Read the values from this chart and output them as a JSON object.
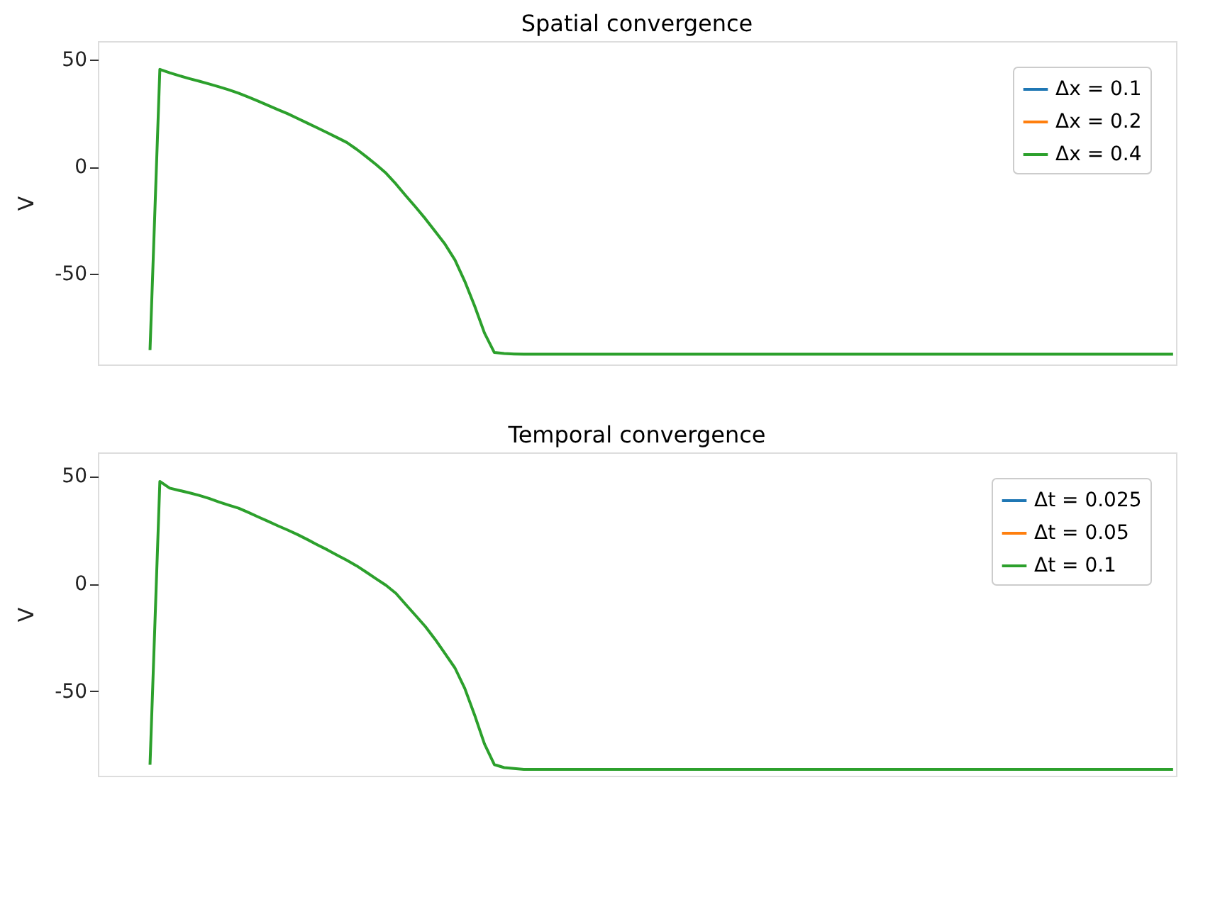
{
  "chart_data": [
    {
      "type": "line",
      "title": "Spatial convergence",
      "ylabel": "V",
      "tick_labels": "y",
      "grid": false,
      "legend": "top right",
      "line_style": "solid",
      "marker": "none",
      "ylim": [
        -92.3,
        58.7
      ],
      "yticks": [
        -50,
        0,
        50
      ],
      "categories": [
        null,
        null,
        null,
        null,
        null,
        null,
        null,
        null,
        null,
        null,
        null,
        null,
        null,
        null,
        null,
        null,
        null,
        null,
        null,
        null,
        null,
        null,
        null,
        null,
        null,
        null,
        null,
        null,
        null,
        null,
        null,
        null,
        null,
        null,
        null,
        null,
        null,
        null,
        null,
        null,
        null,
        null,
        null,
        null,
        null,
        null,
        null,
        null,
        null,
        null,
        null,
        null,
        null,
        null,
        null,
        null,
        null,
        null,
        null,
        null,
        null,
        null,
        null,
        null,
        null,
        null,
        null,
        null,
        null,
        null,
        null,
        null,
        null,
        null,
        null,
        null,
        null,
        null,
        null,
        null,
        null,
        null,
        null,
        null,
        null,
        null,
        null,
        null,
        null,
        null,
        null,
        null,
        null,
        null,
        null,
        null,
        null,
        null,
        null,
        null,
        null,
        null,
        null,
        null,
        null,
        null,
        null,
        null,
        null,
        null
      ],
      "series": [
        {
          "name": "Δx = 0.1",
          "color": "#1f77b4",
          "values": [
            null,
            null,
            null,
            null,
            null,
            null,
            null,
            null,
            null,
            null,
            null,
            null,
            null,
            null,
            null,
            null,
            null,
            null,
            null,
            null,
            null,
            null,
            null,
            null,
            null,
            null,
            null,
            null,
            null,
            null,
            null,
            null,
            null,
            null,
            null,
            null,
            null,
            null,
            null,
            null,
            null,
            null,
            null,
            null,
            null,
            null,
            null,
            null,
            null,
            null,
            null,
            null,
            null,
            null,
            null,
            null,
            null,
            null,
            null,
            null,
            null,
            null,
            null,
            null,
            null,
            null,
            null,
            null,
            null,
            null,
            null,
            null,
            null,
            null,
            null,
            null,
            null,
            null,
            null,
            null,
            null,
            null,
            null,
            null,
            null,
            null,
            null,
            null,
            null,
            null,
            null,
            null,
            null,
            null,
            null,
            null,
            null,
            null,
            null,
            null,
            null,
            null,
            null,
            null,
            null,
            null,
            null,
            null,
            null,
            null
          ]
        },
        {
          "name": "Δx = 0.2",
          "color": "#ff7f0e",
          "values": [
            null,
            null,
            null,
            null,
            null,
            null,
            null,
            null,
            null,
            null,
            null,
            null,
            null,
            null,
            null,
            null,
            null,
            null,
            null,
            null,
            null,
            null,
            null,
            null,
            null,
            null,
            null,
            null,
            null,
            null,
            null,
            null,
            null,
            null,
            null,
            null,
            null,
            null,
            null,
            null,
            null,
            null,
            null,
            null,
            null,
            null,
            null,
            null,
            null,
            null,
            null,
            null,
            null,
            null,
            null,
            null,
            null,
            null,
            null,
            null,
            null,
            null,
            null,
            null,
            null,
            null,
            null,
            null,
            null,
            null,
            null,
            null,
            null,
            null,
            null,
            null,
            null,
            null,
            null,
            null,
            null,
            null,
            null,
            null,
            null,
            null,
            null,
            null,
            null,
            null,
            null,
            null,
            null,
            null,
            null,
            null,
            null,
            null,
            null,
            null,
            null,
            null,
            null,
            null,
            null,
            null,
            null,
            null,
            null,
            null
          ]
        },
        {
          "name": "Δx = 0.4",
          "color": "#2ca02c",
          "values": [
            null,
            null,
            null,
            null,
            null,
            -85.6,
            45.5,
            43.9,
            42.5,
            41.2,
            40.0,
            38.7,
            37.4,
            36.0,
            34.4,
            32.6,
            30.7,
            28.7,
            26.7,
            24.8,
            22.6,
            20.4,
            18.2,
            16.0,
            13.7,
            11.4,
            8.2,
            4.7,
            1.0,
            -3.0,
            -8.0,
            -13.5,
            -18.8,
            -24.3,
            -30.2,
            -36.2,
            -43.5,
            -53.5,
            -65.0,
            -77.6,
            -86.7,
            -87.2,
            -87.4,
            -87.5,
            -87.5,
            -87.5,
            -87.5,
            -87.5,
            -87.5,
            -87.5,
            -87.5,
            -87.5,
            -87.5,
            -87.5,
            -87.5,
            -87.5,
            -87.5,
            -87.5,
            -87.5,
            -87.5,
            -87.5,
            -87.5,
            -87.5,
            -87.5,
            -87.5,
            -87.5,
            -87.5,
            -87.5,
            -87.5,
            -87.5,
            -87.5,
            -87.5,
            -87.5,
            -87.5,
            -87.5,
            -87.5,
            -87.5,
            -87.5,
            -87.5,
            -87.5,
            -87.5,
            -87.5,
            -87.5,
            -87.5,
            -87.5,
            -87.5,
            -87.5,
            -87.5,
            -87.5,
            -87.5,
            -87.5,
            -87.5,
            -87.5,
            -87.5,
            -87.5,
            -87.5,
            -87.5,
            -87.5,
            -87.5,
            -87.5,
            -87.5,
            -87.5,
            -87.5,
            -87.5,
            -87.5,
            -87.5,
            -87.5,
            -87.5,
            -87.5,
            -87.5
          ]
        }
      ]
    },
    {
      "type": "line",
      "title": "Temporal convergence",
      "ylabel": "V",
      "tick_labels": "y",
      "grid": false,
      "legend": "top right",
      "line_style": "solid",
      "marker": "none",
      "ylim": [
        -89.3,
        61
      ],
      "yticks": [
        -50,
        0,
        50
      ],
      "categories": [
        null,
        null,
        null,
        null,
        null,
        null,
        null,
        null,
        null,
        null,
        null,
        null,
        null,
        null,
        null,
        null,
        null,
        null,
        null,
        null,
        null,
        null,
        null,
        null,
        null,
        null,
        null,
        null,
        null,
        null,
        null,
        null,
        null,
        null,
        null,
        null,
        null,
        null,
        null,
        null,
        null,
        null,
        null,
        null,
        null,
        null,
        null,
        null,
        null,
        null,
        null,
        null,
        null,
        null,
        null,
        null,
        null,
        null,
        null,
        null,
        null,
        null,
        null,
        null,
        null,
        null,
        null,
        null,
        null,
        null,
        null,
        null,
        null,
        null,
        null,
        null,
        null,
        null,
        null,
        null,
        null,
        null,
        null,
        null,
        null,
        null,
        null,
        null,
        null,
        null,
        null,
        null,
        null,
        null,
        null,
        null,
        null,
        null,
        null,
        null,
        null,
        null,
        null,
        null,
        null,
        null,
        null,
        null,
        null,
        null
      ],
      "series": [
        {
          "name": "Δt = 0.025",
          "color": "#1f77b4",
          "values": [
            null,
            null,
            null,
            null,
            null,
            null,
            null,
            null,
            null,
            null,
            null,
            null,
            null,
            null,
            null,
            null,
            null,
            null,
            null,
            null,
            null,
            null,
            null,
            null,
            null,
            null,
            null,
            null,
            null,
            null,
            null,
            null,
            null,
            null,
            null,
            null,
            null,
            null,
            null,
            null,
            null,
            null,
            null,
            null,
            null,
            null,
            null,
            null,
            null,
            null,
            null,
            null,
            null,
            null,
            null,
            null,
            null,
            null,
            null,
            null,
            null,
            null,
            null,
            null,
            null,
            null,
            null,
            null,
            null,
            null,
            null,
            null,
            null,
            null,
            null,
            null,
            null,
            null,
            null,
            null,
            null,
            null,
            null,
            null,
            null,
            null,
            null,
            null,
            null,
            null,
            null,
            null,
            null,
            null,
            null,
            null,
            null,
            null,
            null,
            null,
            null,
            null,
            null,
            null,
            null,
            null,
            null,
            null,
            null,
            null
          ]
        },
        {
          "name": "Δt = 0.05",
          "color": "#ff7f0e",
          "values": [
            null,
            null,
            null,
            null,
            null,
            null,
            null,
            null,
            null,
            null,
            null,
            null,
            null,
            null,
            null,
            null,
            null,
            null,
            null,
            null,
            null,
            null,
            null,
            null,
            null,
            null,
            null,
            null,
            null,
            null,
            null,
            null,
            null,
            null,
            null,
            null,
            null,
            null,
            null,
            null,
            null,
            null,
            null,
            null,
            null,
            null,
            null,
            null,
            null,
            null,
            null,
            null,
            null,
            null,
            null,
            null,
            null,
            null,
            null,
            null,
            null,
            null,
            null,
            null,
            null,
            null,
            null,
            null,
            null,
            null,
            null,
            null,
            null,
            null,
            null,
            null,
            null,
            null,
            null,
            null,
            null,
            null,
            null,
            null,
            null,
            null,
            null,
            null,
            null,
            null,
            null,
            null,
            null,
            null,
            null,
            null,
            null,
            null,
            null,
            null,
            null,
            null,
            null,
            null,
            null,
            null,
            null,
            null,
            null,
            null
          ]
        },
        {
          "name": "Δt = 0.1",
          "color": "#2ca02c",
          "values": [
            null,
            null,
            null,
            null,
            null,
            -84.2,
            47.5,
            44.4,
            43.3,
            42.2,
            41.0,
            39.6,
            38.0,
            36.5,
            35.1,
            33.1,
            31.0,
            29.0,
            26.9,
            24.9,
            22.8,
            20.5,
            18.1,
            15.8,
            13.3,
            10.9,
            8.3,
            5.3,
            2.2,
            -0.8,
            -4.5,
            -9.7,
            -14.8,
            -20.0,
            -26.0,
            -32.6,
            -39.2,
            -48.7,
            -61.1,
            -74.5,
            -84.1,
            -85.5,
            -85.9,
            -86.3,
            -86.3,
            -86.3,
            -86.3,
            -86.3,
            -86.3,
            -86.3,
            -86.3,
            -86.3,
            -86.3,
            -86.3,
            -86.3,
            -86.3,
            -86.3,
            -86.3,
            -86.3,
            -86.3,
            -86.3,
            -86.3,
            -86.3,
            -86.3,
            -86.3,
            -86.3,
            -86.3,
            -86.3,
            -86.3,
            -86.3,
            -86.3,
            -86.3,
            -86.3,
            -86.3,
            -86.3,
            -86.3,
            -86.3,
            -86.3,
            -86.3,
            -86.3,
            -86.3,
            -86.3,
            -86.3,
            -86.3,
            -86.3,
            -86.3,
            -86.3,
            -86.3,
            -86.3,
            -86.3,
            -86.3,
            -86.3,
            -86.3,
            -86.3,
            -86.3,
            -86.3,
            -86.3,
            -86.3,
            -86.3,
            -86.3,
            -86.3,
            -86.3,
            -86.3,
            -86.3,
            -86.3,
            -86.3,
            -86.3,
            -86.3,
            -86.3,
            -86.3
          ]
        }
      ]
    }
  ]
}
